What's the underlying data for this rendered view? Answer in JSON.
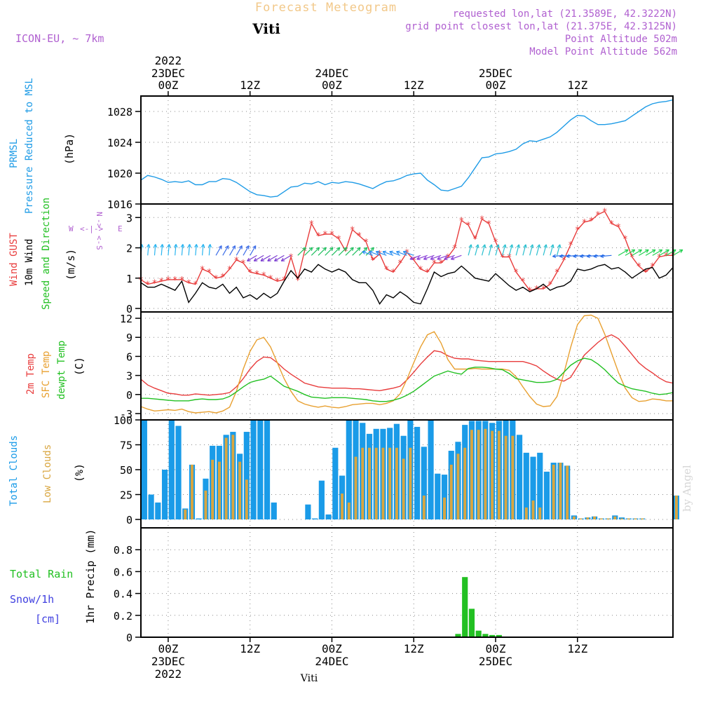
{
  "header": {
    "title": "Forecast Meteogram",
    "location": "Viti",
    "model": "ICON-EU, ~ 7km",
    "requested": "requested lon,lat (21.3589E, 42.3222N)",
    "grid_point": "grid point closest lon,lat (21.375E, 42.3125N)",
    "point_altitude": "Point Altitude 502m",
    "model_altitude": "Model Point Altitude 562m"
  },
  "time_axis": {
    "top": [
      {
        "hour": 0,
        "label": "00Z",
        "date": "23DEC",
        "year": "2022"
      },
      {
        "hour": 12,
        "label": "12Z"
      },
      {
        "hour": 24,
        "label": "00Z",
        "date": "24DEC"
      },
      {
        "hour": 36,
        "label": "12Z"
      },
      {
        "hour": 48,
        "label": "00Z",
        "date": "25DEC"
      },
      {
        "hour": 60,
        "label": "12Z"
      }
    ],
    "bottom": [
      {
        "hour": 0,
        "label": "00Z",
        "date": "23DEC",
        "year": "2022"
      },
      {
        "hour": 12,
        "label": "12Z"
      },
      {
        "hour": 24,
        "label": "00Z",
        "date": "24DEC"
      },
      {
        "hour": 36,
        "label": "12Z"
      },
      {
        "hour": 48,
        "label": "00Z",
        "date": "25DEC"
      },
      {
        "hour": 60,
        "label": "12Z"
      }
    ],
    "footer_location": "Viti"
  },
  "watermark": "by Angel",
  "panel_labels": {
    "pressure": {
      "line1": "PRMSL",
      "line2": "Pressure Reduced to MSL",
      "unit": "(hPa)"
    },
    "wind": {
      "gust": "Wind GUST",
      "wind": "10m Wind",
      "dir": "Speed and Direction",
      "unit": "(m/s)"
    },
    "compass": {
      "n": "N",
      "s": "S",
      "w": "W",
      "e": "E"
    },
    "temp": {
      "t2m": "2m Temp",
      "sfc": "SFC Temp",
      "dew": "dewpt Temp",
      "unit": "(C)"
    },
    "clouds": {
      "total": "Total Clouds",
      "low": "Low Clouds",
      "unit": "(%)"
    },
    "precip": {
      "rain": "Total Rain",
      "snow": "Snow/1h",
      "cm": "[cm]",
      "ylabel": "1hr Precip (mm)"
    }
  },
  "colors": {
    "pressure": "#1e9be6",
    "gust": "#e83c3c",
    "wind": "#000000",
    "temp2m": "#e83c3c",
    "sfc": "#e8a030",
    "dew": "#22c022",
    "total_clouds": "#1a9be8",
    "low_clouds": "#d9a640",
    "rain": "#22c022",
    "header_title": "#f2c889",
    "header_meta": "#b060d0",
    "snow": "#4040e0"
  },
  "chart_data": [
    {
      "type": "line",
      "name": "pressure",
      "x_start_hour": -4,
      "x_step_hours": 1,
      "ylim": [
        1016,
        1030
      ],
      "yticks": [
        1016,
        1020,
        1024,
        1028
      ],
      "series": [
        {
          "name": "PRMSL",
          "values": [
            1019.1,
            1019.7,
            1019.5,
            1019.2,
            1018.8,
            1018.9,
            1018.8,
            1019.0,
            1018.5,
            1018.5,
            1018.9,
            1018.9,
            1019.3,
            1019.2,
            1018.8,
            1018.2,
            1017.6,
            1017.2,
            1017.1,
            1016.9,
            1017.0,
            1017.6,
            1018.2,
            1018.3,
            1018.7,
            1018.6,
            1018.9,
            1018.5,
            1018.8,
            1018.7,
            1018.9,
            1018.8,
            1018.6,
            1018.3,
            1018.0,
            1018.5,
            1018.9,
            1019.0,
            1019.3,
            1019.7,
            1019.9,
            1020.0,
            1019.1,
            1018.5,
            1017.8,
            1017.7,
            1018.0,
            1018.3,
            1019.4,
            1020.7,
            1022.0,
            1022.1,
            1022.5,
            1022.6,
            1022.8,
            1023.1,
            1023.8,
            1024.2,
            1024.1,
            1024.4,
            1024.7,
            1025.3,
            1026.1,
            1026.9,
            1027.5,
            1027.4,
            1026.8,
            1026.3,
            1026.3,
            1026.4,
            1026.6,
            1026.8,
            1027.4,
            1028.0,
            1028.6,
            1029.0,
            1029.2,
            1029.3,
            1029.5
          ]
        }
      ]
    },
    {
      "type": "line",
      "name": "wind",
      "x_start_hour": -4,
      "x_step_hours": 1,
      "ylim": [
        0,
        3.4
      ],
      "yticks": [
        0,
        1,
        2,
        3
      ],
      "series": [
        {
          "name": "Wind GUST",
          "values": [
            0.95,
            0.8,
            0.85,
            0.9,
            0.95,
            0.95,
            0.95,
            0.85,
            0.8,
            1.3,
            1.2,
            1.0,
            1.05,
            1.3,
            1.6,
            1.5,
            1.2,
            1.15,
            1.1,
            1.0,
            0.9,
            0.95,
            1.7,
            0.95,
            1.9,
            2.8,
            2.4,
            2.45,
            2.45,
            2.3,
            1.9,
            2.6,
            2.4,
            2.2,
            1.6,
            1.8,
            1.3,
            1.2,
            1.5,
            1.85,
            1.6,
            1.3,
            1.2,
            1.5,
            1.5,
            1.7,
            2.0,
            2.9,
            2.75,
            2.3,
            2.95,
            2.8,
            2.2,
            1.7,
            1.7,
            1.2,
            0.9,
            0.6,
            0.65,
            0.65,
            0.8,
            1.2,
            1.6,
            2.1,
            2.6,
            2.85,
            2.9,
            3.1,
            3.2,
            2.8,
            2.7,
            2.3,
            1.7,
            1.4,
            1.2,
            1.4,
            1.7,
            1.75,
            1.75
          ]
        },
        {
          "name": "10m Wind",
          "values": [
            0.85,
            0.7,
            0.7,
            0.8,
            0.7,
            0.6,
            0.9,
            0.2,
            0.5,
            0.85,
            0.7,
            0.65,
            0.8,
            0.5,
            0.7,
            0.35,
            0.45,
            0.3,
            0.5,
            0.35,
            0.5,
            0.9,
            1.25,
            1.0,
            1.3,
            1.2,
            1.45,
            1.3,
            1.2,
            1.3,
            1.2,
            0.95,
            0.85,
            0.85,
            0.6,
            0.15,
            0.45,
            0.35,
            0.55,
            0.4,
            0.2,
            0.15,
            0.65,
            1.2,
            1.05,
            1.15,
            1.2,
            1.4,
            1.2,
            1.0,
            0.95,
            0.9,
            1.15,
            0.95,
            0.75,
            0.6,
            0.7,
            0.55,
            0.65,
            0.8,
            0.6,
            0.7,
            0.75,
            0.9,
            1.3,
            1.25,
            1.3,
            1.4,
            1.45,
            1.3,
            1.35,
            1.2,
            1.0,
            1.15,
            1.3,
            1.35,
            1.0,
            1.1,
            1.35
          ]
        }
      ]
    },
    {
      "type": "line",
      "name": "temperature",
      "x_start_hour": -4,
      "x_step_hours": 1,
      "ylim": [
        -4,
        13
      ],
      "yticks": [
        -3,
        0,
        3,
        6,
        9,
        12
      ],
      "series": [
        {
          "name": "2m Temp",
          "values": [
            2.4,
            1.5,
            1.0,
            0.6,
            0.2,
            0.1,
            -0.1,
            -0.1,
            0.1,
            0.0,
            -0.1,
            0.0,
            0.1,
            0.3,
            1.2,
            2.5,
            4.0,
            5.2,
            5.9,
            5.8,
            5.0,
            4.0,
            3.2,
            2.5,
            1.8,
            1.5,
            1.2,
            1.1,
            1.0,
            1.0,
            1.0,
            0.9,
            0.9,
            0.8,
            0.7,
            0.6,
            0.8,
            1.0,
            1.3,
            2.3,
            3.5,
            4.8,
            5.9,
            6.9,
            6.7,
            6.1,
            5.7,
            5.6,
            5.6,
            5.4,
            5.3,
            5.2,
            5.2,
            5.2,
            5.2,
            5.2,
            5.2,
            4.9,
            4.5,
            3.7,
            3.0,
            2.4,
            2.1,
            2.7,
            4.4,
            6.2,
            7.2,
            8.2,
            9.0,
            9.4,
            8.8,
            7.6,
            6.3,
            5.0,
            4.1,
            3.4,
            2.6,
            2.0,
            1.8
          ]
        },
        {
          "name": "SFC Temp",
          "values": [
            -1.9,
            -2.3,
            -2.6,
            -2.5,
            -2.4,
            -2.5,
            -2.3,
            -2.7,
            -2.9,
            -2.8,
            -2.7,
            -2.9,
            -2.6,
            -2.0,
            0.5,
            4.0,
            6.8,
            8.6,
            9.0,
            7.5,
            5.0,
            2.5,
            0.5,
            -1.0,
            -1.5,
            -1.8,
            -2.0,
            -1.8,
            -2.0,
            -2.1,
            -1.9,
            -1.6,
            -1.5,
            -1.4,
            -1.4,
            -1.6,
            -1.4,
            -1.0,
            0.1,
            2.4,
            5.0,
            7.5,
            9.4,
            9.9,
            8.1,
            5.5,
            4.0,
            4.0,
            4.0,
            4.1,
            4.0,
            4.0,
            4.0,
            4.0,
            3.8,
            2.8,
            1.2,
            -0.3,
            -1.5,
            -1.9,
            -1.8,
            -0.3,
            3.3,
            7.4,
            11.0,
            12.4,
            12.5,
            12.0,
            9.5,
            6.5,
            3.5,
            1.0,
            -0.5,
            -1.1,
            -1.0,
            -0.7,
            -0.8,
            -1.0,
            -1.0
          ]
        },
        {
          "name": "dewpt Temp",
          "values": [
            -0.6,
            -0.6,
            -0.7,
            -0.8,
            -0.9,
            -1.0,
            -1.0,
            -1.0,
            -0.8,
            -0.7,
            -0.8,
            -0.8,
            -0.7,
            -0.3,
            0.4,
            1.2,
            1.9,
            2.2,
            2.4,
            2.9,
            2.1,
            1.3,
            0.9,
            0.5,
            0.0,
            -0.4,
            -0.5,
            -0.6,
            -0.5,
            -0.5,
            -0.5,
            -0.6,
            -0.7,
            -0.8,
            -1.0,
            -1.1,
            -1.1,
            -0.9,
            -0.6,
            -0.1,
            0.5,
            1.3,
            2.1,
            2.9,
            3.3,
            3.7,
            3.4,
            3.2,
            4.1,
            4.3,
            4.3,
            4.2,
            4.0,
            3.9,
            3.3,
            2.5,
            2.3,
            2.1,
            1.9,
            1.9,
            2.0,
            2.4,
            3.5,
            4.6,
            5.3,
            5.7,
            5.5,
            4.8,
            3.9,
            2.8,
            1.8,
            1.3,
            0.9,
            0.7,
            0.5,
            0.2,
            0.0,
            0.1,
            0.3
          ]
        }
      ]
    },
    {
      "type": "bar",
      "name": "clouds",
      "x_start_hour": -4,
      "x_step_hours": 1,
      "ylim": [
        0,
        100
      ],
      "yticks": [
        0,
        25,
        50,
        75,
        100
      ],
      "series": [
        {
          "name": "Total Clouds",
          "values": [
            100,
            25,
            17,
            50,
            100,
            94,
            11,
            55,
            1,
            41,
            74,
            74,
            85,
            88,
            66,
            88,
            100,
            100,
            100,
            17,
            0,
            0,
            0,
            0,
            15,
            1,
            39,
            5,
            72,
            44,
            100,
            100,
            97,
            86,
            91,
            91,
            92,
            96,
            84,
            100,
            93,
            73,
            100,
            46,
            45,
            69,
            78,
            95,
            99,
            99,
            99,
            97,
            99,
            100,
            100,
            85,
            67,
            63,
            67,
            48,
            57,
            57,
            54,
            4,
            1,
            2,
            3,
            1,
            1,
            4,
            2,
            1,
            1,
            1,
            0,
            0,
            0,
            0,
            24
          ]
        },
        {
          "name": "Low Clouds",
          "values": [
            0,
            0,
            0,
            0,
            0,
            0,
            10,
            55,
            0,
            29,
            60,
            58,
            82,
            85,
            58,
            40,
            0,
            0,
            0,
            0,
            0,
            0,
            0,
            0,
            0,
            0,
            0,
            0,
            0,
            26,
            17,
            63,
            72,
            72,
            72,
            72,
            72,
            72,
            61,
            72,
            0,
            24,
            0,
            0,
            22,
            55,
            66,
            72,
            90,
            90,
            91,
            89,
            89,
            84,
            84,
            0,
            12,
            19,
            12,
            0,
            55,
            57,
            54,
            3,
            1,
            2,
            3,
            1,
            1,
            3,
            1,
            1,
            1,
            1,
            0,
            0,
            0,
            0,
            24
          ]
        }
      ]
    },
    {
      "type": "bar",
      "name": "precip",
      "x_start_hour": -4,
      "x_step_hours": 1,
      "ylim": [
        0,
        1.0
      ],
      "yticks": [
        0,
        0.2,
        0.4,
        0.6,
        0.8
      ],
      "series": [
        {
          "name": "Total Rain",
          "values": [
            0,
            0,
            0,
            0,
            0,
            0,
            0,
            0,
            0,
            0,
            0,
            0,
            0,
            0,
            0,
            0,
            0,
            0,
            0,
            0,
            0,
            0,
            0,
            0,
            0,
            0,
            0,
            0,
            0,
            0,
            0,
            0,
            0,
            0,
            0,
            0,
            0,
            0,
            0,
            0,
            0,
            0,
            0,
            0,
            0,
            0,
            0.03,
            0.55,
            0.26,
            0.06,
            0.03,
            0.02,
            0.02,
            0,
            0,
            0,
            0,
            0,
            0,
            0,
            0,
            0,
            0,
            0,
            0,
            0,
            0,
            0,
            0,
            0,
            0,
            0,
            0,
            0,
            0,
            0,
            0,
            0,
            0
          ]
        }
      ]
    }
  ]
}
